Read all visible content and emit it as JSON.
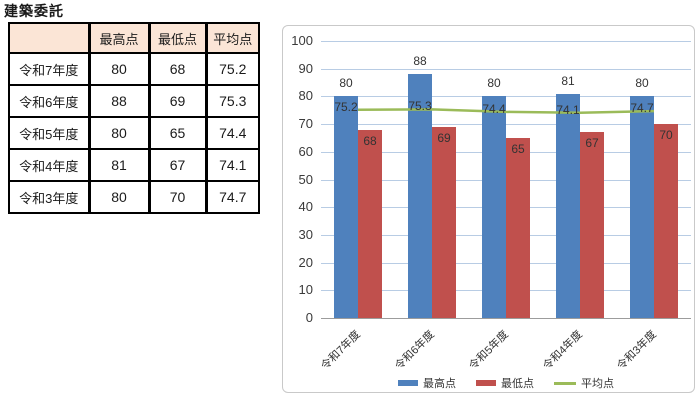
{
  "title": "建築委託",
  "table": {
    "headers": [
      "",
      "最高点",
      "最低点",
      "平均点"
    ],
    "header_bg": "#FBE5D6",
    "rows": [
      {
        "year": "令和7年度",
        "high": "80",
        "low": "68",
        "avg": "75.2"
      },
      {
        "year": "令和6年度",
        "high": "88",
        "low": "69",
        "avg": "75.3"
      },
      {
        "year": "令和5年度",
        "high": "80",
        "low": "65",
        "avg": "74.4"
      },
      {
        "year": "令和4年度",
        "high": "81",
        "low": "67",
        "avg": "74.1"
      },
      {
        "year": "令和3年度",
        "high": "80",
        "low": "70",
        "avg": "74.7"
      }
    ]
  },
  "chart_data": {
    "type": "bar",
    "title": "",
    "categories": [
      "令和7年度",
      "令和6年度",
      "令和5年度",
      "令和4年度",
      "令和3年度"
    ],
    "series": [
      {
        "key": "high",
        "name": "最高点",
        "kind": "bar",
        "color": "#4F81BD",
        "values": [
          80,
          88,
          80,
          81,
          80
        ],
        "labels": [
          "80",
          "88",
          "80",
          "81",
          "80"
        ],
        "label_position": "outside"
      },
      {
        "key": "low",
        "name": "最低点",
        "kind": "bar",
        "color": "#C0504D",
        "values": [
          68,
          69,
          65,
          67,
          70
        ],
        "labels": [
          "68",
          "69",
          "65",
          "67",
          "70"
        ],
        "label_position": "inside"
      },
      {
        "key": "avg",
        "name": "平均点",
        "kind": "line",
        "color": "#9BBB59",
        "values": [
          75.2,
          75.3,
          74.4,
          74.1,
          74.7
        ],
        "labels": [
          "75.2",
          "75.3",
          "74.4",
          "74.1",
          "74.7"
        ],
        "label_position": "on-line"
      }
    ],
    "ylim": [
      0,
      100
    ],
    "yticks": [
      0,
      10,
      20,
      30,
      40,
      50,
      60,
      70,
      80,
      90,
      100
    ],
    "grid": true,
    "legend_position": "bottom",
    "colors": {
      "grid": "#B8CCE4",
      "axis": "#9C9C9C",
      "label_text": "#333333"
    }
  }
}
